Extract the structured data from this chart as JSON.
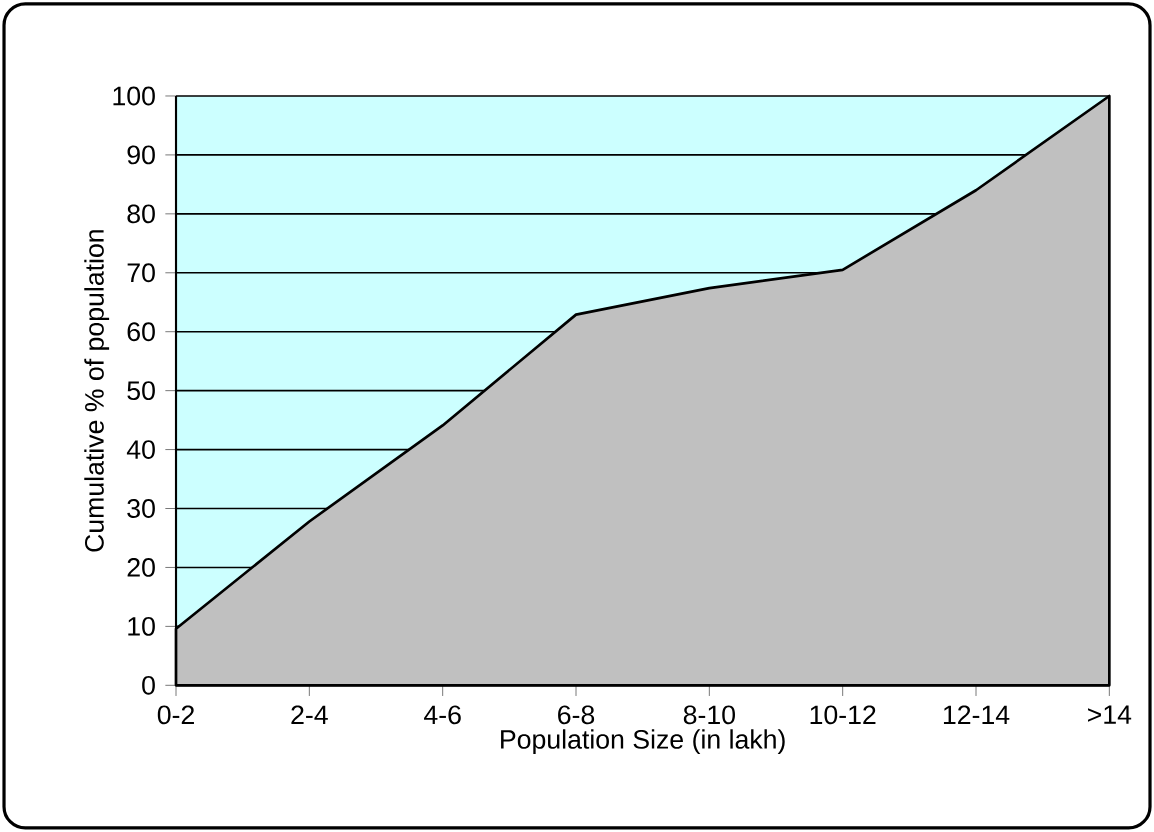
{
  "chart_data": {
    "type": "area",
    "xlabel": "Population Size (in lakh)",
    "ylabel": "Cumulative % of population",
    "categories": [
      "0-2",
      "2-4",
      "4-6",
      "6-8",
      "8-10",
      "10-12",
      "12-14",
      ">14"
    ],
    "values": [
      9.6,
      27.8,
      44.1,
      62.9,
      67.4,
      70.5,
      84.0,
      100
    ],
    "color": "#c0c0c0",
    "ylim": [
      0,
      100
    ],
    "yticks": [
      0,
      10,
      20,
      30,
      40,
      50,
      60,
      70,
      80,
      90,
      100
    ],
    "grid": "y"
  }
}
